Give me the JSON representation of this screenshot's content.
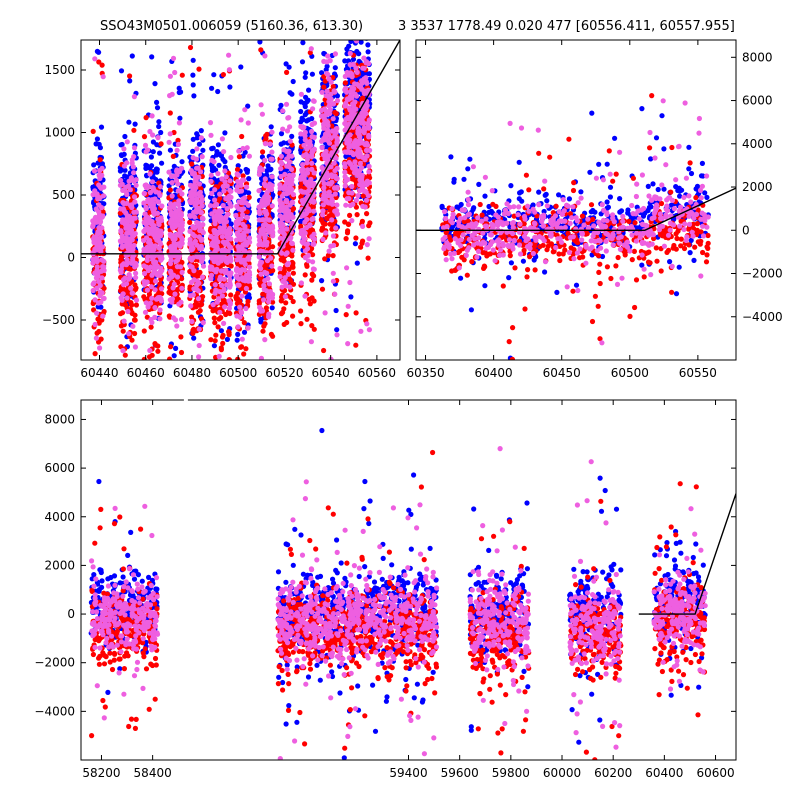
{
  "header": {
    "left_title": "SSO43M0501.006059 (5160.36, 613.30)",
    "right_title": "3 3537 1778.49 0.020 477 [60556.411, 60557.955]"
  },
  "colors": {
    "series_blue": "#0000ff",
    "series_red": "#ff0000",
    "series_magenta": "#ee5fe0",
    "fit_line": "#000000"
  },
  "chart_data": [
    {
      "id": "top-left",
      "type": "scatter",
      "title": "",
      "xlabel": "",
      "ylabel": "",
      "xlim": [
        60432,
        60570
      ],
      "ylim": [
        -820,
        1740
      ],
      "xticks": [
        60440,
        60460,
        60480,
        60500,
        60520,
        60540,
        60560
      ],
      "yticks": [
        -500,
        0,
        500,
        1000,
        1500
      ],
      "ytick_side": "left",
      "grid": false,
      "clusters": [
        {
          "x_range": [
            60437,
            60442
          ],
          "y_center": 150,
          "y_spread": 650
        },
        {
          "x_range": [
            60449,
            60456
          ],
          "y_center": 180,
          "y_spread": 700
        },
        {
          "x_range": [
            60459,
            60467
          ],
          "y_center": 120,
          "y_spread": 650
        },
        {
          "x_range": [
            60470,
            60476
          ],
          "y_center": 150,
          "y_spread": 600
        },
        {
          "x_range": [
            60479,
            60485
          ],
          "y_center": 250,
          "y_spread": 700
        },
        {
          "x_range": [
            60488,
            60497
          ],
          "y_center": 150,
          "y_spread": 650
        },
        {
          "x_range": [
            60499,
            60505
          ],
          "y_center": 100,
          "y_spread": 600
        },
        {
          "x_range": [
            60509,
            60515
          ],
          "y_center": 180,
          "y_spread": 650
        },
        {
          "x_range": [
            60518,
            60524
          ],
          "y_center": 350,
          "y_spread": 650
        },
        {
          "x_range": [
            60527,
            60533
          ],
          "y_center": 550,
          "y_spread": 650
        },
        {
          "x_range": [
            60536,
            60543
          ],
          "y_center": 800,
          "y_spread": 700
        },
        {
          "x_range": [
            60546,
            60557
          ],
          "y_center": 1050,
          "y_spread": 700
        }
      ],
      "fit_line": {
        "x": [
          60432,
          60517,
          60570
        ],
        "y": [
          30,
          30,
          1740
        ]
      }
    },
    {
      "id": "top-right",
      "type": "scatter",
      "title": "",
      "xlabel": "",
      "ylabel": "",
      "xlim": [
        60343,
        60578
      ],
      "ylim": [
        -6000,
        8800
      ],
      "xticks": [
        60350,
        60400,
        60450,
        60500,
        60550
      ],
      "yticks": [
        -4000,
        -2000,
        0,
        2000,
        4000,
        6000,
        8000
      ],
      "ytick_side": "right",
      "grid": false,
      "clusters": [
        {
          "x_range": [
            60362,
            60515
          ],
          "y_center": 0,
          "y_spread": 1400
        },
        {
          "x_range": [
            60515,
            60558
          ],
          "y_center": 600,
          "y_spread": 1600
        }
      ],
      "fit_line": {
        "x": [
          60343,
          60511,
          60578
        ],
        "y": [
          0,
          0,
          1950
        ]
      }
    },
    {
      "id": "bottom",
      "type": "scatter",
      "title": "",
      "xlabel": "",
      "ylabel": "",
      "xlim": [
        58120,
        60680
      ],
      "ylim": [
        -6000,
        8800
      ],
      "xticks": [
        58200,
        58400,
        59400,
        59600,
        59800,
        60000,
        60200,
        60400,
        60600
      ],
      "xtick_positions": [
        58200,
        58400,
        59400,
        59600,
        59800,
        60000,
        60200,
        60400,
        60600
      ],
      "yticks": [
        -4000,
        -2000,
        0,
        2000,
        4000,
        6000,
        8000
      ],
      "ytick_side": "left",
      "grid": false,
      "clusters": [
        {
          "x_range": [
            58160,
            58420
          ],
          "y_center": -100,
          "y_spread": 1600
        },
        {
          "x_range": [
            58890,
            59510
          ],
          "y_center": -300,
          "y_spread": 1700
        },
        {
          "x_range": [
            59640,
            59870
          ],
          "y_center": -350,
          "y_spread": 1800
        },
        {
          "x_range": [
            60030,
            60230
          ],
          "y_center": -400,
          "y_spread": 1800
        },
        {
          "x_range": [
            60360,
            60560
          ],
          "y_center": 0,
          "y_spread": 1700
        }
      ],
      "fit_line": {
        "x": [
          60300,
          60520,
          60680
        ],
        "y": [
          0,
          0,
          4950
        ]
      }
    }
  ]
}
